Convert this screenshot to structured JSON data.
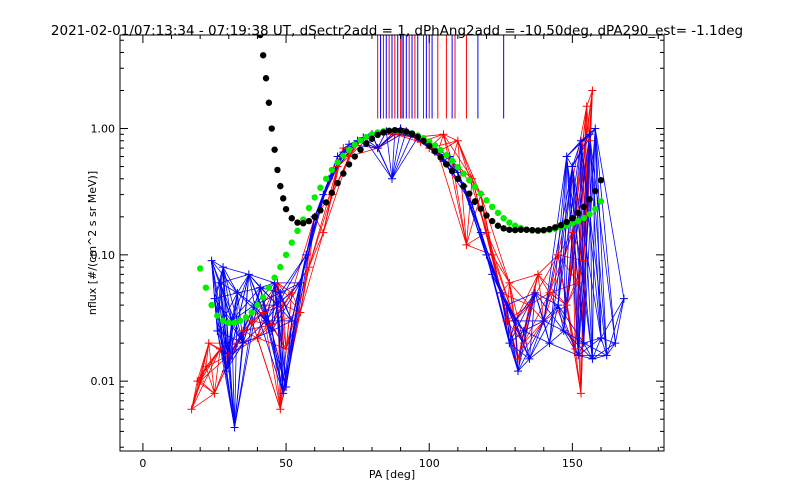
{
  "chart_data": {
    "type": "scatter",
    "title": "2021-02-01/07:13:34 - 07:19:38 UT, dSectr2add = 1, dPhAng2add = -10.50deg, dPA290_est=  -1.1deg",
    "xlabel": "PA [deg]",
    "ylabel": "nflux [#/(cm^2 s sr MeV)]",
    "xlim": [
      -8,
      182
    ],
    "ylim": [
      0.0028,
      5.5
    ],
    "yscale": "log",
    "grid": false,
    "legend": "none",
    "x_ticks": [
      0,
      50,
      100,
      150
    ],
    "y_ticks": [
      0.01,
      0.1,
      1.0
    ],
    "y_tick_labels": [
      "0.01",
      "0.10",
      "1.00"
    ],
    "colors": {
      "red": "#ff0000",
      "blue": "#0000ff",
      "green": "#00ee00",
      "black": "#000000",
      "axis": "#000000"
    },
    "vertical_markers": {
      "ymin": 1.2,
      "ymax": 5.5,
      "red": [
        82,
        84,
        86,
        88,
        90,
        91,
        93,
        95,
        98,
        100,
        103,
        106,
        109,
        113
      ],
      "blue": [
        83,
        85,
        87,
        89,
        90.5,
        92,
        94,
        96,
        99,
        101,
        108,
        117,
        126
      ]
    },
    "series": [
      {
        "color": "red",
        "points": [
          [
            17,
            0.006
          ],
          [
            19,
            0.01
          ],
          [
            20,
            0.01
          ],
          [
            22,
            0.013
          ],
          [
            23,
            0.02
          ],
          [
            25,
            0.008
          ],
          [
            27,
            0.018
          ],
          [
            30,
            0.016
          ],
          [
            33,
            0.02
          ],
          [
            35,
            0.025
          ],
          [
            38,
            0.03
          ],
          [
            40,
            0.022
          ],
          [
            42,
            0.035
          ],
          [
            45,
            0.028
          ],
          [
            47,
            0.06
          ],
          [
            48,
            0.006
          ],
          [
            49,
            0.04
          ],
          [
            50,
            0.018
          ],
          [
            52,
            0.05
          ],
          [
            55,
            0.035
          ],
          [
            58,
            0.08
          ],
          [
            60,
            0.2
          ],
          [
            63,
            0.15
          ],
          [
            66,
            0.3
          ],
          [
            68,
            0.5
          ],
          [
            70,
            0.7
          ],
          [
            72,
            0.6
          ],
          [
            75,
            0.8
          ],
          [
            77,
            0.85
          ],
          [
            80,
            0.9
          ],
          [
            82,
            0.7
          ],
          [
            85,
            0.95
          ],
          [
            88,
            0.9
          ],
          [
            90,
            1.0
          ],
          [
            92,
            0.95
          ],
          [
            95,
            0.85
          ],
          [
            97,
            0.78
          ],
          [
            100,
            0.7
          ],
          [
            103,
            0.65
          ],
          [
            105,
            0.9
          ],
          [
            108,
            0.55
          ],
          [
            110,
            0.8
          ],
          [
            113,
            0.12
          ],
          [
            115,
            0.4
          ],
          [
            118,
            0.3
          ],
          [
            120,
            0.15
          ],
          [
            122,
            0.1
          ],
          [
            125,
            0.05
          ],
          [
            127,
            0.03
          ],
          [
            128,
            0.06
          ],
          [
            130,
            0.03
          ],
          [
            131,
            0.015
          ],
          [
            133,
            0.02
          ],
          [
            135,
            0.04
          ],
          [
            138,
            0.07
          ],
          [
            140,
            0.03
          ],
          [
            142,
            0.05
          ],
          [
            145,
            0.1
          ],
          [
            148,
            0.04
          ],
          [
            150,
            0.15
          ],
          [
            151,
            0.018
          ],
          [
            152,
            0.06
          ],
          [
            153,
            0.008
          ],
          [
            154,
            0.09
          ],
          [
            155,
            1.5
          ],
          [
            156,
            0.8
          ],
          [
            157,
            2.0
          ]
        ]
      },
      {
        "color": "blue",
        "points": [
          [
            24,
            0.09
          ],
          [
            25,
            0.045
          ],
          [
            26,
            0.025
          ],
          [
            27,
            0.06
          ],
          [
            28,
            0.08
          ],
          [
            29,
            0.012
          ],
          [
            30,
            0.015
          ],
          [
            31,
            0.03
          ],
          [
            32,
            0.0043
          ],
          [
            33,
            0.05
          ],
          [
            35,
            0.02
          ],
          [
            37,
            0.07
          ],
          [
            39,
            0.04
          ],
          [
            41,
            0.055
          ],
          [
            43,
            0.03
          ],
          [
            45,
            0.025
          ],
          [
            46,
            0.06
          ],
          [
            47,
            0.04
          ],
          [
            48,
            0.05
          ],
          [
            49,
            0.008
          ],
          [
            50,
            0.009
          ],
          [
            52,
            0.03
          ],
          [
            55,
            0.06
          ],
          [
            57,
            0.1
          ],
          [
            60,
            0.2
          ],
          [
            63,
            0.3
          ],
          [
            65,
            0.4
          ],
          [
            68,
            0.6
          ],
          [
            70,
            0.65
          ],
          [
            72,
            0.75
          ],
          [
            75,
            0.8
          ],
          [
            77,
            0.85
          ],
          [
            80,
            0.9
          ],
          [
            82,
            0.7
          ],
          [
            85,
            0.95
          ],
          [
            87,
            0.4
          ],
          [
            88,
            0.95
          ],
          [
            90,
            1.0
          ],
          [
            92,
            0.95
          ],
          [
            94,
            0.9
          ],
          [
            96,
            0.85
          ],
          [
            98,
            0.8
          ],
          [
            100,
            0.75
          ],
          [
            102,
            0.65
          ],
          [
            105,
            0.55
          ],
          [
            107,
            0.6
          ],
          [
            110,
            0.45
          ],
          [
            112,
            0.35
          ],
          [
            115,
            0.25
          ],
          [
            118,
            0.15
          ],
          [
            120,
            0.1
          ],
          [
            122,
            0.07
          ],
          [
            125,
            0.05
          ],
          [
            127,
            0.04
          ],
          [
            128,
            0.02
          ],
          [
            130,
            0.03
          ],
          [
            131,
            0.012
          ],
          [
            133,
            0.025
          ],
          [
            135,
            0.015
          ],
          [
            137,
            0.05
          ],
          [
            140,
            0.03
          ],
          [
            142,
            0.02
          ],
          [
            145,
            0.04
          ],
          [
            147,
            0.025
          ],
          [
            148,
            0.6
          ],
          [
            150,
            0.5
          ],
          [
            152,
            0.016
          ],
          [
            153,
            0.8
          ],
          [
            154,
            0.02
          ],
          [
            156,
            0.9
          ],
          [
            157,
            0.015
          ],
          [
            158,
            1.0
          ],
          [
            160,
            0.022
          ],
          [
            162,
            0.016
          ],
          [
            165,
            0.02
          ],
          [
            168,
            0.045
          ]
        ]
      },
      {
        "color": "green",
        "points": [
          [
            20,
            0.078
          ],
          [
            22,
            0.055
          ],
          [
            24,
            0.04
          ],
          [
            26,
            0.033
          ],
          [
            28,
            0.03
          ],
          [
            30,
            0.029
          ],
          [
            32,
            0.029
          ],
          [
            34,
            0.03
          ],
          [
            36,
            0.032
          ],
          [
            38,
            0.035
          ],
          [
            40,
            0.04
          ],
          [
            42,
            0.046
          ],
          [
            44,
            0.055
          ],
          [
            46,
            0.066
          ],
          [
            48,
            0.08
          ],
          [
            50,
            0.1
          ],
          [
            52,
            0.125
          ],
          [
            54,
            0.155
          ],
          [
            56,
            0.19
          ],
          [
            58,
            0.235
          ],
          [
            60,
            0.285
          ],
          [
            62,
            0.34
          ],
          [
            64,
            0.4
          ],
          [
            66,
            0.47
          ],
          [
            68,
            0.54
          ],
          [
            70,
            0.61
          ],
          [
            72,
            0.68
          ],
          [
            74,
            0.745
          ],
          [
            76,
            0.805
          ],
          [
            78,
            0.855
          ],
          [
            80,
            0.9
          ],
          [
            82,
            0.93
          ],
          [
            84,
            0.95
          ],
          [
            86,
            0.96
          ],
          [
            88,
            0.96
          ],
          [
            90,
            0.955
          ],
          [
            92,
            0.94
          ],
          [
            94,
            0.915
          ],
          [
            96,
            0.88
          ],
          [
            98,
            0.84
          ],
          [
            100,
            0.79
          ],
          [
            102,
            0.735
          ],
          [
            104,
            0.675
          ],
          [
            106,
            0.615
          ],
          [
            108,
            0.555
          ],
          [
            110,
            0.495
          ],
          [
            112,
            0.44
          ],
          [
            114,
            0.39
          ],
          [
            116,
            0.345
          ],
          [
            118,
            0.305
          ],
          [
            120,
            0.27
          ],
          [
            122,
            0.24
          ],
          [
            124,
            0.215
          ],
          [
            126,
            0.195
          ],
          [
            128,
            0.18
          ],
          [
            130,
            0.17
          ],
          [
            132,
            0.163
          ],
          [
            134,
            0.158
          ],
          [
            136,
            0.156
          ],
          [
            138,
            0.155
          ],
          [
            140,
            0.156
          ],
          [
            142,
            0.158
          ],
          [
            144,
            0.161
          ],
          [
            146,
            0.165
          ],
          [
            148,
            0.17
          ],
          [
            150,
            0.177
          ],
          [
            152,
            0.185
          ],
          [
            154,
            0.196
          ],
          [
            156,
            0.21
          ],
          [
            158,
            0.23
          ],
          [
            160,
            0.265
          ]
        ]
      },
      {
        "color": "black",
        "points": [
          [
            41,
            5.5
          ],
          [
            42,
            3.8
          ],
          [
            43,
            2.5
          ],
          [
            44,
            1.6
          ],
          [
            45,
            1.0
          ],
          [
            46,
            0.68
          ],
          [
            47,
            0.47
          ],
          [
            48,
            0.35
          ],
          [
            49,
            0.28
          ],
          [
            50,
            0.23
          ],
          [
            52,
            0.195
          ],
          [
            54,
            0.18
          ],
          [
            56,
            0.178
          ],
          [
            58,
            0.185
          ],
          [
            60,
            0.2
          ],
          [
            62,
            0.225
          ],
          [
            64,
            0.26
          ],
          [
            66,
            0.31
          ],
          [
            68,
            0.37
          ],
          [
            70,
            0.44
          ],
          [
            72,
            0.52
          ],
          [
            74,
            0.6
          ],
          [
            76,
            0.68
          ],
          [
            78,
            0.76
          ],
          [
            80,
            0.83
          ],
          [
            82,
            0.89
          ],
          [
            84,
            0.93
          ],
          [
            86,
            0.96
          ],
          [
            88,
            0.97
          ],
          [
            90,
            0.965
          ],
          [
            92,
            0.945
          ],
          [
            94,
            0.91
          ],
          [
            96,
            0.86
          ],
          [
            98,
            0.8
          ],
          [
            100,
            0.73
          ],
          [
            102,
            0.66
          ],
          [
            104,
            0.59
          ],
          [
            106,
            0.52
          ],
          [
            108,
            0.46
          ],
          [
            110,
            0.4
          ],
          [
            112,
            0.35
          ],
          [
            114,
            0.305
          ],
          [
            116,
            0.265
          ],
          [
            118,
            0.232
          ],
          [
            120,
            0.205
          ],
          [
            122,
            0.185
          ],
          [
            124,
            0.17
          ],
          [
            126,
            0.162
          ],
          [
            128,
            0.158
          ],
          [
            130,
            0.157
          ],
          [
            132,
            0.158
          ],
          [
            134,
            0.158
          ],
          [
            136,
            0.157
          ],
          [
            138,
            0.156
          ],
          [
            140,
            0.157
          ],
          [
            142,
            0.16
          ],
          [
            144,
            0.165
          ],
          [
            146,
            0.172
          ],
          [
            148,
            0.182
          ],
          [
            150,
            0.195
          ],
          [
            152,
            0.215
          ],
          [
            154,
            0.24
          ],
          [
            156,
            0.275
          ],
          [
            158,
            0.32
          ],
          [
            160,
            0.39
          ]
        ]
      }
    ]
  }
}
